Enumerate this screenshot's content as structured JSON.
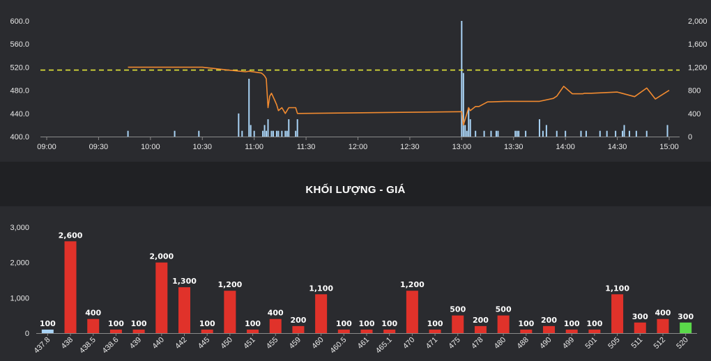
{
  "section_title": "KHỐI LƯỢNG - GIÁ",
  "colors": {
    "background": "#202124",
    "panel": "#2a2b2f",
    "price_line": "#f28b30",
    "volume_bar": "#a9d3f5",
    "reference_line": "#e6e83a",
    "bar_red": "#e0322a",
    "bar_green": "#5ad94a",
    "bar_blue": "#a9d3f5"
  },
  "chart_data": [
    {
      "type": "line",
      "left_axis": {
        "ticks": [
          "400.0",
          "440.0",
          "480.0",
          "520.0",
          "560.0",
          "600.0"
        ],
        "ylim": [
          400,
          600
        ]
      },
      "right_axis": {
        "ticks": [
          "0",
          "400",
          "800",
          "1,200",
          "1,600",
          "2,000"
        ],
        "ylim": [
          0,
          2000
        ]
      },
      "x_ticks": [
        "09:00",
        "09:30",
        "10:00",
        "10:30",
        "11:00",
        "11:30",
        "12:00",
        "12:30",
        "13:00",
        "13:30",
        "14:00",
        "14:30",
        "15:00"
      ],
      "reference_price": 515,
      "price_series": {
        "name": "price",
        "x": [
          "09:47",
          "10:30",
          "10:45",
          "10:55",
          "10:57",
          "11:04",
          "11:05",
          "11:06",
          "11:07",
          "11:08",
          "11:09",
          "11:10",
          "11:12",
          "11:13",
          "11:14",
          "11:16",
          "11:18",
          "11:20",
          "11:24",
          "11:25",
          "12:59",
          "13:00",
          "13:01",
          "13:02",
          "13:04",
          "13:05",
          "13:08",
          "13:10",
          "13:15",
          "13:17",
          "13:25",
          "13:45",
          "13:53",
          "13:55",
          "13:59",
          "14:04",
          "14:10",
          "14:11",
          "14:15",
          "14:30",
          "14:40",
          "14:47",
          "14:52",
          "15:00"
        ],
        "y": [
          520,
          520,
          515,
          512,
          513,
          510,
          508,
          505,
          500,
          450,
          470,
          475,
          462,
          455,
          445,
          450,
          440,
          450,
          450,
          440,
          443,
          443,
          420,
          430,
          450,
          445,
          452,
          452,
          460,
          460,
          461,
          461,
          466,
          470,
          487,
          474,
          474,
          475,
          475,
          477,
          469,
          484,
          465,
          480
        ]
      },
      "volume_series": {
        "name": "volume",
        "x": [
          "09:47",
          "10:14",
          "10:28",
          "10:51",
          "10:53",
          "10:57",
          "10:58",
          "11:00",
          "11:05",
          "11:06",
          "11:07",
          "11:08",
          "11:10",
          "11:11",
          "11:13",
          "11:14",
          "11:16",
          "11:18",
          "11:19",
          "11:20",
          "11:24",
          "11:25",
          "13:00",
          "13:01",
          "13:02",
          "13:03",
          "13:04",
          "13:05",
          "13:08",
          "13:13",
          "13:17",
          "13:20",
          "13:21",
          "13:31",
          "13:32",
          "13:33",
          "13:37",
          "13:45",
          "13:47",
          "13:49",
          "13:55",
          "14:00",
          "14:09",
          "14:12",
          "14:20",
          "14:24",
          "14:29",
          "14:33",
          "14:34",
          "14:37",
          "14:41",
          "14:47",
          "14:59"
        ],
        "values": [
          100,
          100,
          100,
          400,
          100,
          1000,
          200,
          100,
          100,
          200,
          100,
          300,
          100,
          100,
          100,
          100,
          100,
          100,
          100,
          300,
          100,
          300,
          2000,
          1100,
          200,
          100,
          500,
          300,
          100,
          100,
          100,
          100,
          100,
          100,
          100,
          100,
          100,
          300,
          100,
          200,
          100,
          100,
          100,
          100,
          100,
          100,
          100,
          100,
          200,
          100,
          100,
          100,
          200
        ]
      }
    },
    {
      "type": "bar",
      "title": "KHỐI LƯỢNG - GIÁ",
      "categories": [
        "437.8",
        "438",
        "438.5",
        "438.6",
        "439",
        "440",
        "442",
        "445",
        "450",
        "451",
        "455",
        "459",
        "460",
        "460.5",
        "461",
        "465.1",
        "470",
        "471",
        "475",
        "478",
        "480",
        "488",
        "490",
        "499",
        "501",
        "505",
        "511",
        "512",
        "520"
      ],
      "values": [
        100,
        2600,
        400,
        100,
        100,
        2000,
        1300,
        100,
        1200,
        100,
        400,
        200,
        1100,
        100,
        100,
        100,
        1200,
        100,
        500,
        200,
        500,
        100,
        200,
        100,
        100,
        1100,
        300,
        400,
        300
      ],
      "data_labels": [
        "100",
        "2,600",
        "400",
        "100",
        "100",
        "2,000",
        "1,300",
        "100",
        "1,200",
        "100",
        "400",
        "200",
        "1,100",
        "100",
        "100",
        "100",
        "1,200",
        "100",
        "500",
        "200",
        "500",
        "100",
        "200",
        "100",
        "100",
        "1,100",
        "300",
        "400",
        "300"
      ],
      "bar_colors": [
        "blue",
        "red",
        "red",
        "red",
        "red",
        "red",
        "red",
        "red",
        "red",
        "red",
        "red",
        "red",
        "red",
        "red",
        "red",
        "red",
        "red",
        "red",
        "red",
        "red",
        "red",
        "red",
        "red",
        "red",
        "red",
        "red",
        "red",
        "red",
        "green"
      ],
      "y_ticks": [
        "0",
        "1,000",
        "2,000",
        "3,000"
      ],
      "ylim": [
        0,
        3000
      ]
    }
  ]
}
